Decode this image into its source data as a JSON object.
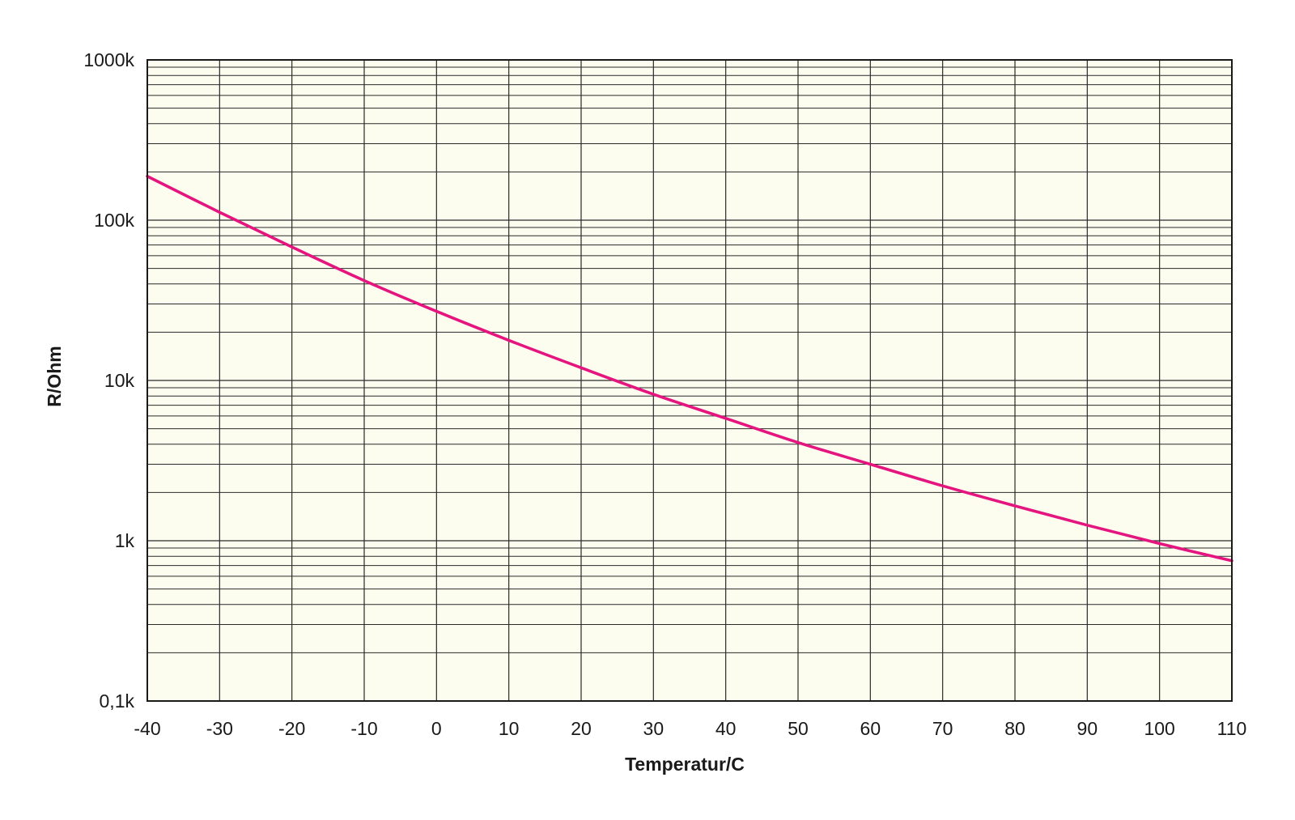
{
  "chart_data": {
    "type": "line",
    "title": "",
    "xlabel": "Temperatur/C",
    "ylabel": "R/Ohm",
    "xlim": [
      -40,
      110
    ],
    "ylim_k": [
      0.1,
      1000
    ],
    "y_scale": "log",
    "grid": true,
    "x_ticks": [
      -40,
      -30,
      -20,
      -10,
      0,
      10,
      20,
      30,
      40,
      50,
      60,
      70,
      80,
      90,
      100,
      110
    ],
    "x_tick_labels": [
      "-40",
      "-30",
      "-20",
      "-10",
      "0",
      "10",
      "20",
      "30",
      "40",
      "50",
      "60",
      "70",
      "80",
      "90",
      "100",
      "110"
    ],
    "y_ticks_k": [
      0.1,
      1,
      10,
      100,
      1000
    ],
    "y_tick_labels": [
      "0,1k",
      "1k",
      "10k",
      "100k",
      "1000k"
    ],
    "series": [
      {
        "color": "#e5157f",
        "x": [
          -40,
          -30,
          -20,
          -10,
          0,
          10,
          20,
          30,
          40,
          50,
          60,
          70,
          80,
          90,
          100,
          110
        ],
        "y_k": [
          188,
          112,
          68,
          42,
          27,
          17.8,
          12,
          8.2,
          5.8,
          4.1,
          3.0,
          2.2,
          1.65,
          1.25,
          0.96,
          0.75
        ]
      }
    ],
    "plot_background": "#fdfdef"
  }
}
